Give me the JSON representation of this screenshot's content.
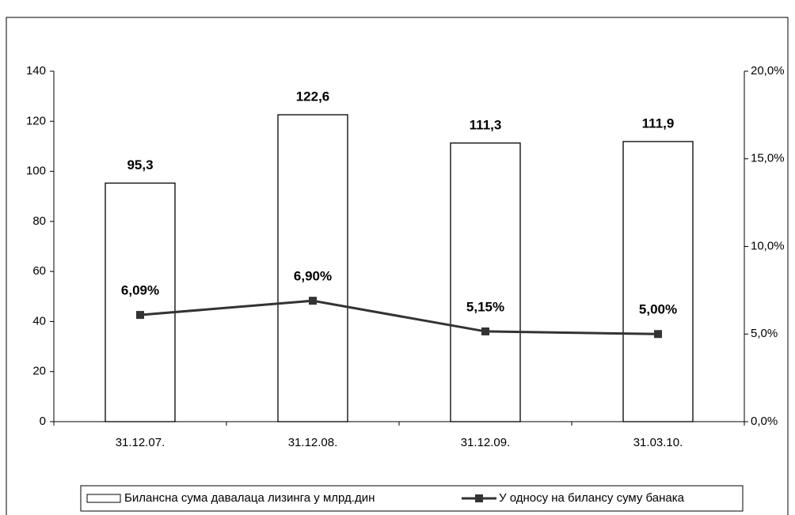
{
  "chart_data": {
    "type": "bar",
    "categories": [
      "31.12.07.",
      "31.12.08.",
      "31.12.09.",
      "31.03.10."
    ],
    "series": [
      {
        "name": "Билансна сума давалаца лизинга у млрд.дин",
        "type": "bar",
        "color": "#ffffff",
        "values": [
          95.3,
          122.6,
          111.3,
          111.9
        ],
        "value_labels": [
          "95,3",
          "122,6",
          "111,3",
          "111,9"
        ]
      },
      {
        "name": "У односу на билансу суму банака",
        "type": "line",
        "axis": "y2",
        "color": "#333333",
        "values": [
          6.09,
          6.9,
          5.15,
          5.0
        ],
        "value_labels": [
          "6,09%",
          "6,90%",
          "5,15%",
          "5,00%"
        ]
      }
    ],
    "ylim": [
      0,
      140
    ],
    "yticks": [
      0,
      20,
      40,
      60,
      80,
      100,
      120,
      140
    ],
    "y2lim": [
      0,
      20
    ],
    "y2ticks": [
      {
        "value": 0,
        "label": "0,0%"
      },
      {
        "value": 5,
        "label": "5,0%"
      },
      {
        "value": 10,
        "label": "10,0%"
      },
      {
        "value": 15,
        "label": "15,0%"
      },
      {
        "value": 20,
        "label": "20,0%"
      }
    ],
    "grid": false,
    "legend": "bottom"
  }
}
